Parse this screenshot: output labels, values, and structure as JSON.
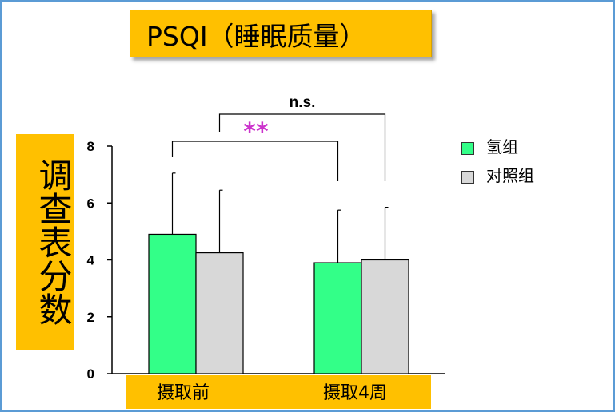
{
  "chart_data": {
    "type": "bar",
    "title": "PSQI（睡眠质量）",
    "ylabel": "调查表分数",
    "categories": [
      "摄取前",
      "摄取4周"
    ],
    "series": [
      {
        "name": "氢组",
        "color": "#33ff88",
        "values": [
          4.9,
          3.9
        ],
        "error": [
          2.15,
          1.85
        ]
      },
      {
        "name": "对照组",
        "color": "#d8d8d8",
        "values": [
          4.25,
          4.0
        ],
        "error": [
          2.2,
          1.85
        ]
      }
    ],
    "ylim": [
      0,
      8
    ],
    "yticks": [
      "0",
      "2",
      "4",
      "6",
      "8"
    ],
    "legend_position": "right",
    "annotations": [
      {
        "text": "**",
        "color": "#cc33cc",
        "between": [
          "氢组 摄取前",
          "氢组 摄取4周"
        ]
      },
      {
        "text": "n.s.",
        "color": "#000000",
        "between": [
          "对照组 摄取前",
          "对照组 摄取4周"
        ]
      }
    ]
  }
}
